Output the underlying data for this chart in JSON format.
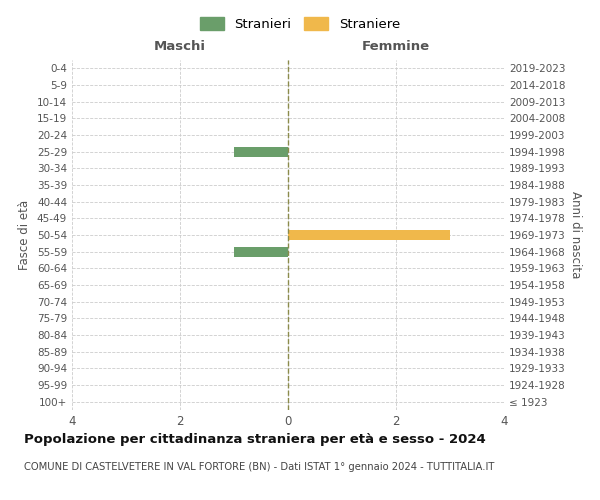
{
  "age_groups": [
    "100+",
    "95-99",
    "90-94",
    "85-89",
    "80-84",
    "75-79",
    "70-74",
    "65-69",
    "60-64",
    "55-59",
    "50-54",
    "45-49",
    "40-44",
    "35-39",
    "30-34",
    "25-29",
    "20-24",
    "15-19",
    "10-14",
    "5-9",
    "0-4"
  ],
  "birth_years": [
    "≤ 1923",
    "1924-1928",
    "1929-1933",
    "1934-1938",
    "1939-1943",
    "1944-1948",
    "1949-1953",
    "1954-1958",
    "1959-1963",
    "1964-1968",
    "1969-1973",
    "1974-1978",
    "1979-1983",
    "1984-1988",
    "1989-1993",
    "1994-1998",
    "1999-2003",
    "2004-2008",
    "2009-2013",
    "2014-2018",
    "2019-2023"
  ],
  "males": [
    0,
    0,
    0,
    0,
    0,
    0,
    0,
    0,
    0,
    1,
    0,
    0,
    0,
    0,
    0,
    1,
    0,
    0,
    0,
    0,
    0
  ],
  "females": [
    0,
    0,
    0,
    0,
    0,
    0,
    0,
    0,
    0,
    0,
    3,
    0,
    0,
    0,
    0,
    0,
    0,
    0,
    0,
    0,
    0
  ],
  "male_color": "#6a9e6a",
  "female_color": "#f0b84b",
  "background_color": "#ffffff",
  "grid_color": "#cccccc",
  "xlim": 4,
  "title": "Popolazione per cittadinanza straniera per età e sesso - 2024",
  "subtitle": "COMUNE DI CASTELVETERE IN VAL FORTORE (BN) - Dati ISTAT 1° gennaio 2024 - TUTTITALIA.IT",
  "legend_stranieri": "Stranieri",
  "legend_straniere": "Straniere",
  "left_axis_label": "Fasce di età",
  "right_axis_label": "Anni di nascita",
  "maschi_label": "Maschi",
  "femmine_label": "Femmine"
}
